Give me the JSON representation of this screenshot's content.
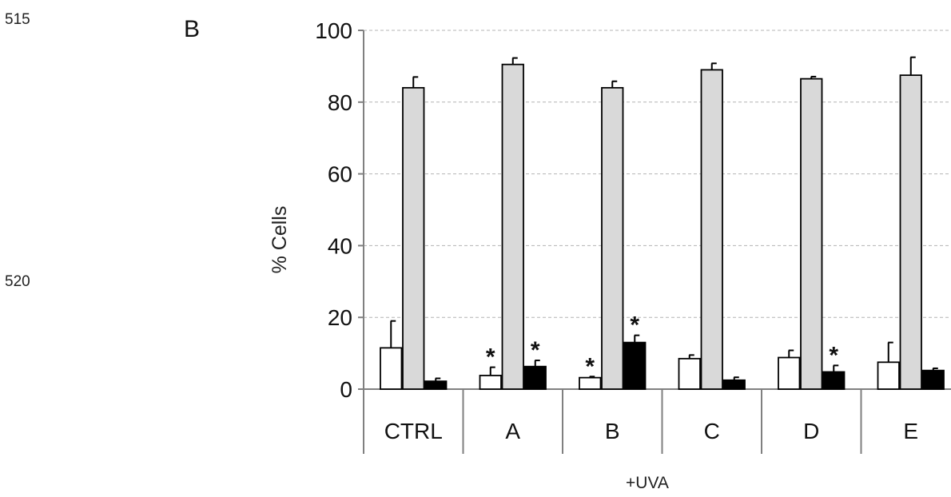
{
  "page": {
    "line_numbers": [
      "515",
      "520"
    ],
    "panel_label": "B"
  },
  "chart_data": {
    "type": "bar",
    "title": "",
    "ylabel": "% Cells",
    "xlabel": "+UVA",
    "ylim": [
      0,
      100
    ],
    "yticks": [
      0,
      20,
      40,
      60,
      80,
      100
    ],
    "grid": true,
    "categories": [
      "CTRL",
      "A",
      "B",
      "C",
      "D",
      "E"
    ],
    "series": [
      {
        "fill": "#ffffff",
        "values": [
          11.5,
          3.8,
          3.2,
          8.5,
          8.8,
          7.5
        ],
        "errors": [
          7.5,
          2.3,
          0.3,
          1.0,
          2.0,
          5.5
        ],
        "significant": [
          false,
          true,
          true,
          false,
          false,
          false
        ]
      },
      {
        "fill": "#d9d9d9",
        "values": [
          84,
          90.5,
          84,
          89,
          86.5,
          87.5
        ],
        "errors": [
          3.0,
          1.8,
          1.8,
          1.8,
          0.6,
          5.0
        ],
        "significant": [
          false,
          false,
          false,
          false,
          false,
          false
        ]
      },
      {
        "fill": "#000000",
        "values": [
          2.2,
          6.3,
          13,
          2.5,
          4.8,
          5.2
        ],
        "errors": [
          0.8,
          1.7,
          2.0,
          0.8,
          1.8,
          0.6
        ],
        "significant": [
          false,
          true,
          true,
          false,
          true,
          false
        ]
      }
    ],
    "significance_marker": "*"
  }
}
